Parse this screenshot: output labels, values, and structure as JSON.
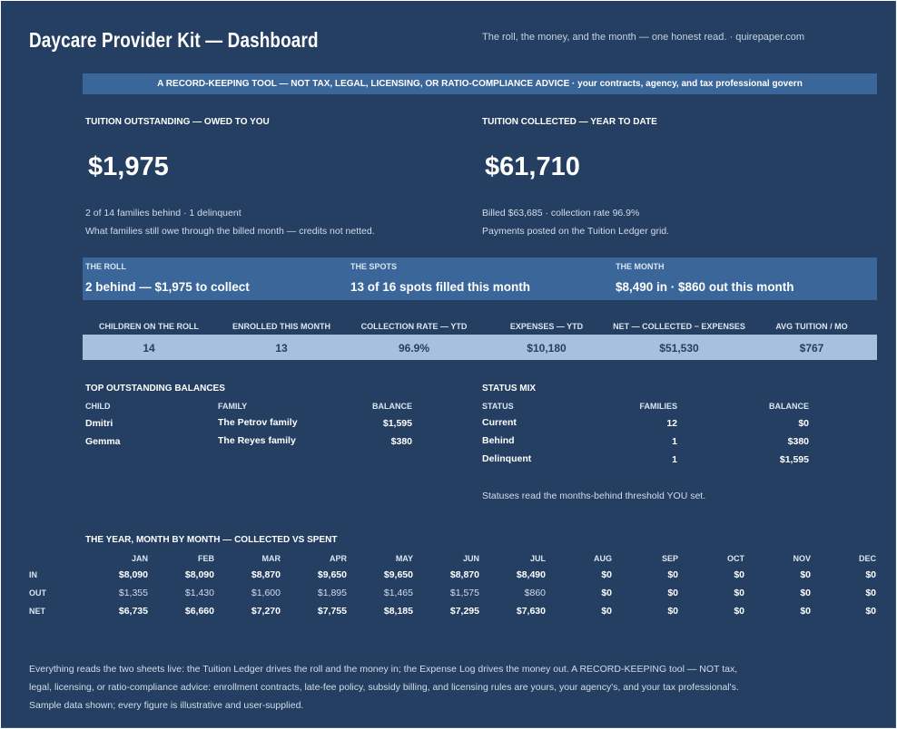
{
  "header": {
    "title": "Daycare Provider Kit — Dashboard",
    "tagline": "The roll, the money, and the month — one honest read.  ·  quirepaper.com"
  },
  "banner": "A RECORD-KEEPING TOOL — NOT TAX, LEGAL, LICENSING, OR RATIO-COMPLIANCE ADVICE  ·  your contracts, agency, and tax professional govern",
  "outstanding": {
    "label": "TUITION OUTSTANDING — OWED TO YOU",
    "value": "$1,975",
    "line1": "2 of 14 families behind  ·  1 delinquent",
    "line2": "What families still owe through the billed month — credits not netted."
  },
  "collected": {
    "label": "TUITION COLLECTED — YEAR TO DATE",
    "value": "$61,710",
    "line1": "Billed $63,685  ·  collection rate 96.9%",
    "line2": "Payments posted on the Tuition Ledger grid."
  },
  "strip": [
    {
      "label": "THE ROLL",
      "value": "2 behind — $1,975 to collect"
    },
    {
      "label": "THE SPOTS",
      "value": "13 of 16 spots filled this month"
    },
    {
      "label": "THE MONTH",
      "value": "$8,490 in · $860 out this month"
    }
  ],
  "kpis": [
    {
      "label": "CHILDREN ON THE ROLL",
      "value": "14"
    },
    {
      "label": "ENROLLED THIS MONTH",
      "value": "13"
    },
    {
      "label": "COLLECTION RATE — YTD",
      "value": "96.9%"
    },
    {
      "label": "EXPENSES — YTD",
      "value": "$10,180"
    },
    {
      "label": "NET — COLLECTED − EXPENSES",
      "value": "$51,530"
    },
    {
      "label": "AVG TUITION / MO",
      "value": "$767"
    }
  ],
  "balances": {
    "title": "TOP OUTSTANDING BALANCES",
    "columns": [
      "CHILD",
      "FAMILY",
      "BALANCE"
    ],
    "rows": [
      {
        "child": "Dmitri",
        "family": "The Petrov family",
        "balance": "$1,595"
      },
      {
        "child": "Gemma",
        "family": "The Reyes family",
        "balance": "$380"
      }
    ]
  },
  "status_mix": {
    "title": "STATUS MIX",
    "columns": [
      "STATUS",
      "FAMILIES",
      "BALANCE"
    ],
    "rows": [
      {
        "status": "Current",
        "families": "12",
        "balance": "$0"
      },
      {
        "status": "Behind",
        "families": "1",
        "balance": "$380"
      },
      {
        "status": "Delinquent",
        "families": "1",
        "balance": "$1,595"
      }
    ],
    "note": "Statuses read the months-behind threshold YOU set."
  },
  "year": {
    "title": "THE YEAR, MONTH BY MONTH — COLLECTED VS SPENT",
    "months": [
      "JAN",
      "FEB",
      "MAR",
      "APR",
      "MAY",
      "JUN",
      "JUL",
      "AUG",
      "SEP",
      "OCT",
      "NOV",
      "DEC"
    ],
    "rows": [
      {
        "label": "IN",
        "values": [
          "$8,090",
          "$8,090",
          "$8,870",
          "$9,650",
          "$9,650",
          "$8,870",
          "$8,490",
          "$0",
          "$0",
          "$0",
          "$0",
          "$0"
        ]
      },
      {
        "label": "OUT",
        "values": [
          "$1,355",
          "$1,430",
          "$1,600",
          "$1,895",
          "$1,465",
          "$1,575",
          "$860",
          "$0",
          "$0",
          "$0",
          "$0",
          "$0"
        ]
      },
      {
        "label": "NET",
        "values": [
          "$6,735",
          "$6,660",
          "$7,270",
          "$7,755",
          "$8,185",
          "$7,295",
          "$7,630",
          "$0",
          "$0",
          "$0",
          "$0",
          "$0"
        ]
      }
    ]
  },
  "footer": "Everything reads the two sheets live: the Tuition Ledger drives the roll and the money in; the Expense Log drives the money out. A RECORD-KEEPING tool — NOT tax, legal, licensing, or ratio-compliance advice: enrollment contracts, late-fee policy, subsidy billing, and licensing rules are yours, your agency's, and your tax professional's. Sample data shown; every figure is illustrative and user-supplied."
}
